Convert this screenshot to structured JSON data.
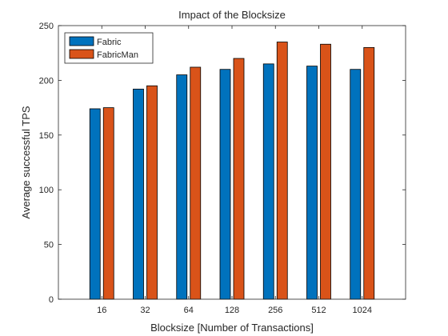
{
  "chart_data": {
    "type": "bar",
    "title": "Impact of the Blocksize",
    "xlabel": "Blocksize [Number of Transactions]",
    "ylabel": "Average successful TPS",
    "categories": [
      "16",
      "32",
      "64",
      "128",
      "256",
      "512",
      "1024"
    ],
    "series": [
      {
        "name": "Fabric",
        "values": [
          174,
          192,
          205,
          210,
          215,
          213,
          210
        ],
        "color": "#0072BD"
      },
      {
        "name": "FabricMan",
        "values": [
          175,
          195,
          212,
          220,
          235,
          233,
          230
        ],
        "color": "#D95319"
      }
    ],
    "ylim": [
      0,
      250
    ],
    "yticks": [
      0,
      50,
      100,
      150,
      200,
      250
    ],
    "grid": false,
    "legend_position": "top-left"
  }
}
